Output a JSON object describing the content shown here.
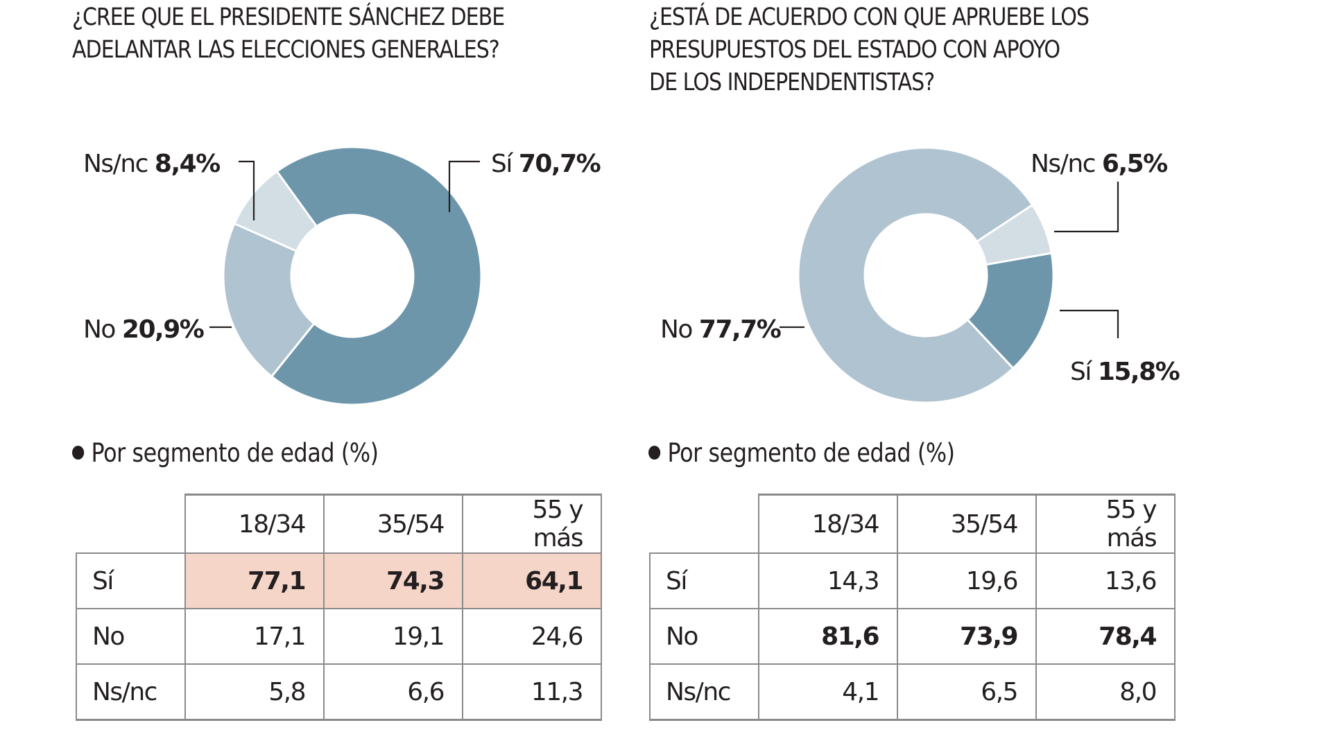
{
  "colors": {
    "si": "#6e96ab",
    "no": "#afc3d0",
    "nsnc": "#d2dde4",
    "highlight": "#f5d5c8",
    "text": "#231f20",
    "grid": "#8a8a8a"
  },
  "chart_data": [
    {
      "type": "pie",
      "donut": true,
      "title": "¿CREE QUE EL PRESIDENTE SÁNCHEZ DEBE ADELANTAR LAS ELECCIONES GENERALES?",
      "title_lines": [
        "¿CREE QUE EL PRESIDENTE SÁNCHEZ DEBE",
        "ADELANTAR LAS ELECCIONES GENERALES?"
      ],
      "slices": [
        {
          "key": "si",
          "name": "Sí",
          "value": 70.7,
          "label": "70,7%",
          "color": "#6e96ab"
        },
        {
          "key": "no",
          "name": "No",
          "value": 20.9,
          "label": "20,9%",
          "color": "#afc3d0"
        },
        {
          "key": "nsnc",
          "name": "Ns/nc",
          "value": 8.4,
          "label": "8,4%",
          "color": "#d2dde4"
        }
      ],
      "start_angle_deg": -35.8,
      "subtitle": "Por segmento de edad (%)",
      "table": {
        "columns": [
          "18/34",
          "35/54",
          "55 y más"
        ],
        "rows": [
          {
            "label": "Sí",
            "values": [
              "77,1",
              "74,3",
              "64,1"
            ],
            "highlight": true,
            "bold": true
          },
          {
            "label": "No",
            "values": [
              "17,1",
              "19,1",
              "24,6"
            ],
            "highlight": false,
            "bold": false
          },
          {
            "label": "Ns/nc",
            "values": [
              "5,8",
              "6,6",
              "11,3"
            ],
            "highlight": false,
            "bold": false
          }
        ]
      }
    },
    {
      "type": "pie",
      "donut": true,
      "title": "¿ESTÁ DE ACUERDO CON QUE APRUEBE LOS PRESUPUESTOS DEL ESTADO CON APOYO DE LOS INDEPENDENTISTAS?",
      "title_lines": [
        "¿ESTÁ DE ACUERDO CON QUE APRUEBE LOS",
        "PRESUPUESTOS DEL ESTADO CON APOYO",
        "DE LOS INDEPENDENTISTAS?"
      ],
      "slices": [
        {
          "key": "si",
          "name": "Sí",
          "value": 15.8,
          "label": "15,8%",
          "color": "#6e96ab"
        },
        {
          "key": "no",
          "name": "No",
          "value": 77.7,
          "label": "77,7%",
          "color": "#afc3d0"
        },
        {
          "key": "nsnc",
          "name": "Ns/nc",
          "value": 6.5,
          "label": "6,5%",
          "color": "#d2dde4"
        }
      ],
      "start_angle_deg": 80,
      "subtitle": "Por segmento de edad (%)",
      "table": {
        "columns": [
          "18/34",
          "35/54",
          "55 y más"
        ],
        "rows": [
          {
            "label": "Sí",
            "values": [
              "14,3",
              "19,6",
              "13,6"
            ],
            "highlight": false,
            "bold": false
          },
          {
            "label": "No",
            "values": [
              "81,6",
              "73,9",
              "78,4"
            ],
            "highlight": false,
            "bold": true
          },
          {
            "label": "Ns/nc",
            "values": [
              "4,1",
              "6,5",
              "8,0"
            ],
            "highlight": false,
            "bold": false
          }
        ]
      }
    }
  ]
}
